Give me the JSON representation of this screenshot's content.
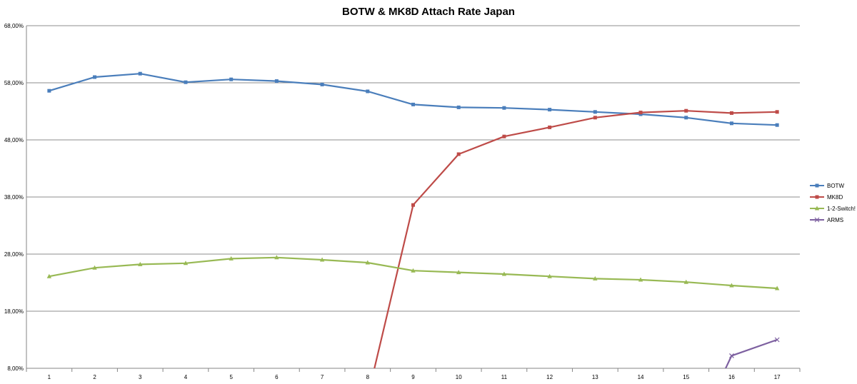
{
  "chart_data": {
    "type": "line",
    "title": "BOTW & MK8D Attach Rate Japan",
    "xlabel": "",
    "ylabel": "",
    "x": [
      1,
      2,
      3,
      4,
      5,
      6,
      7,
      8,
      9,
      10,
      11,
      12,
      13,
      14,
      15,
      16,
      17
    ],
    "x_tick_labels": [
      "1",
      "2",
      "3",
      "4",
      "5",
      "6",
      "7",
      "8",
      "9",
      "10",
      "11",
      "12",
      "13",
      "14",
      "15",
      "16",
      "17"
    ],
    "ylim": [
      8,
      68
    ],
    "y_ticks": [
      8,
      18,
      28,
      38,
      48,
      58,
      68
    ],
    "y_tick_labels": [
      "8,00%",
      "18,00%",
      "28,00%",
      "38,00%",
      "48,00%",
      "58,00%",
      "68,00%"
    ],
    "grid": "horizontal",
    "legend_position": "right",
    "series": [
      {
        "name": "BOTW",
        "color": "#4A7EBB",
        "marker": "square",
        "values": [
          56.6,
          59.0,
          59.6,
          58.1,
          58.6,
          58.3,
          57.7,
          56.5,
          54.2,
          53.7,
          53.6,
          53.3,
          52.9,
          52.5,
          51.9,
          50.9,
          50.6
        ]
      },
      {
        "name": "MK8D",
        "color": "#BE4B48",
        "marker": "square",
        "values": [
          null,
          null,
          null,
          null,
          null,
          null,
          null,
          3.0,
          36.6,
          45.5,
          48.6,
          50.2,
          51.9,
          52.8,
          53.1,
          52.7,
          52.9
        ]
      },
      {
        "name": "1-2-Switch!",
        "color": "#98B954",
        "marker": "triangle",
        "values": [
          24.1,
          25.6,
          26.2,
          26.4,
          27.2,
          27.4,
          27.0,
          26.5,
          25.1,
          24.8,
          24.5,
          24.1,
          23.7,
          23.5,
          23.1,
          22.5,
          22.0
        ]
      },
      {
        "name": "ARMS",
        "color": "#7D60A0",
        "marker": "x",
        "values": [
          null,
          null,
          null,
          null,
          null,
          null,
          null,
          null,
          null,
          null,
          null,
          null,
          null,
          null,
          null,
          10.2,
          13.0
        ],
        "entry_from_below": true
      }
    ]
  }
}
